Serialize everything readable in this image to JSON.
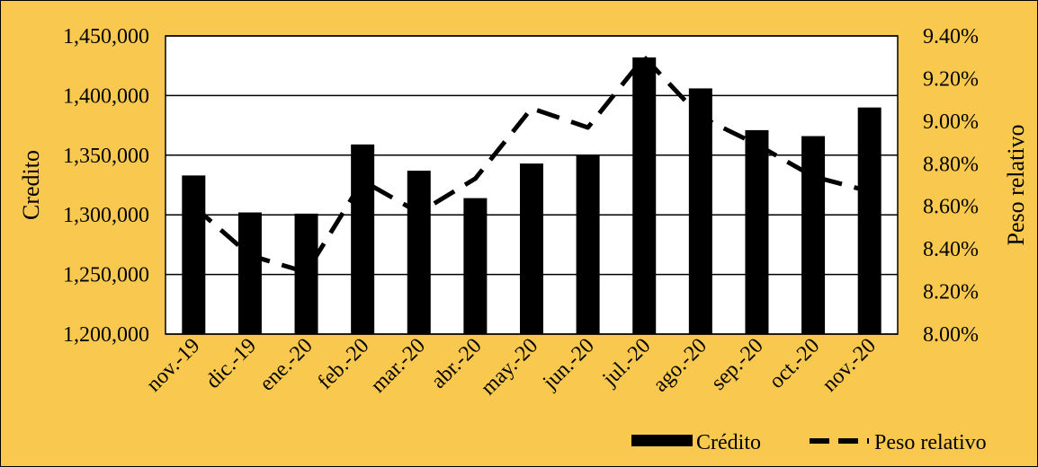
{
  "colors": {
    "background": "#F9C94F",
    "plot_background": "#FFFFFF",
    "bars": "#000000",
    "line": "#000000"
  },
  "chart_data": {
    "type": "bar",
    "categories": [
      "nov.-19",
      "dic.-19",
      "ene.-20",
      "feb.-20",
      "mar.-20",
      "abr.-20",
      "may.-20",
      "jun.-20",
      "jul.-20",
      "ago.-20",
      "sep.-20",
      "oct.-20",
      "nov.-20"
    ],
    "series": [
      {
        "name": "Crédito",
        "type": "bar",
        "axis": "left",
        "values": [
          1333000,
          1302000,
          1301000,
          1359000,
          1337000,
          1314000,
          1343000,
          1350000,
          1432000,
          1406000,
          1371000,
          1366000,
          1390000
        ]
      },
      {
        "name": "Peso relativo",
        "type": "line",
        "style": "dashed",
        "axis": "right",
        "values": [
          0.086,
          0.0837,
          0.0829,
          0.0872,
          0.0857,
          0.0873,
          0.0906,
          0.0897,
          0.093,
          0.0902,
          0.0889,
          0.0874,
          0.0867
        ]
      }
    ],
    "ylabel": "Credito",
    "y2label": "Peso relativo",
    "ylim": [
      1200000,
      1450000
    ],
    "y2lim": [
      0.08,
      0.094
    ],
    "yticks": [
      "1,200,000",
      "1,250,000",
      "1,300,000",
      "1,350,000",
      "1,400,000",
      "1,450,000"
    ],
    "y2ticks": [
      "8.00%",
      "8.20%",
      "8.40%",
      "8.60%",
      "8.80%",
      "9.00%",
      "9.20%",
      "9.40%"
    ],
    "grid": "horizontal",
    "legend": "bottom-right"
  }
}
